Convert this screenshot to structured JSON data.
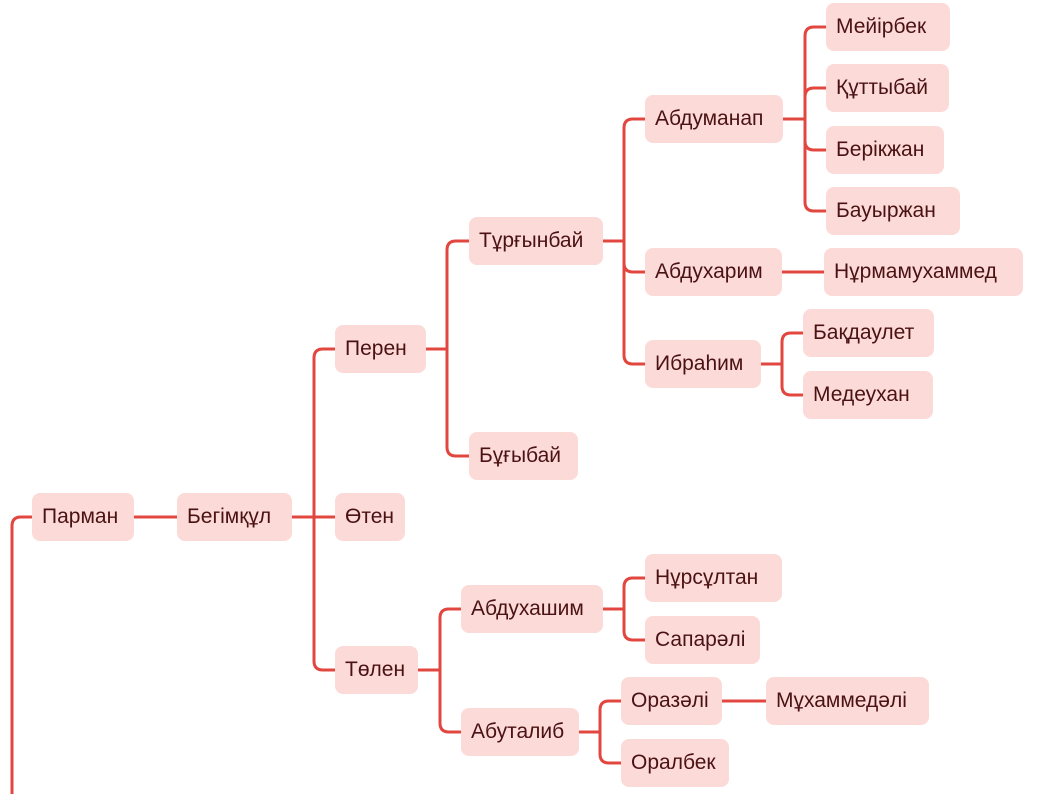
{
  "colors": {
    "line": "#e2473f",
    "node_fill": "#fcdad7",
    "text": "#4a1212"
  },
  "nodes": {
    "parman": "Парман",
    "begimkul": "Бегімқұл",
    "peren": "Перен",
    "oten": "Өтен",
    "tolen": "Төлен",
    "turgynbai": "Тұрғынбай",
    "bugybai": "Бұғыбай",
    "abdumanap": "Абдуманап",
    "abduharim": "Абдухарим",
    "ibrahim": "Ибраһим",
    "meiirbek": "Мейірбек",
    "kuttybai": "Құттыбай",
    "berikzhan": "Берікжан",
    "bauyrzhan": "Бауыржан",
    "nurmamuhammed": "Нұрмамухаммед",
    "bakdaulet": "Бақдаулет",
    "medeuhan": "Медеухан",
    "abduhashim": "Абдухашим",
    "abutalib": "Абуталиб",
    "nursultan": "Нұрсұлтан",
    "saparali": "Сапарәлі",
    "orazali": "Оразәлі",
    "oralbek": "Оралбек",
    "muhammedali": "Мұхаммедәлі"
  }
}
